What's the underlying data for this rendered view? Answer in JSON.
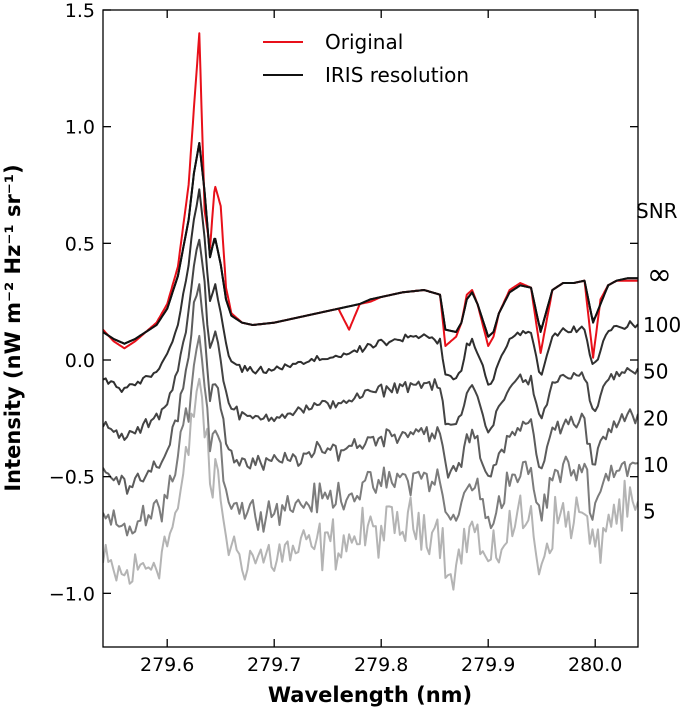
{
  "chart_data": {
    "type": "line",
    "title": "",
    "xlabel": "Wavelength (nm)",
    "ylabel": "Intensity (nW m⁻² Hz⁻¹ sr⁻¹)",
    "xlim": [
      279.54,
      280.04
    ],
    "ylim": [
      -1.23,
      1.5
    ],
    "x_ticks": [
      279.6,
      279.7,
      279.8,
      279.9,
      280.0
    ],
    "x_tick_labels": [
      "279.6",
      "279.7",
      "279.8",
      "279.9",
      "280.0"
    ],
    "y_ticks": [
      1.5,
      1.0,
      0.5,
      0.0,
      -0.5,
      -1.0
    ],
    "y_tick_labels": [
      "1.5",
      "1.0",
      "0.5",
      "0.0",
      "−0.5",
      "−1.0"
    ],
    "grid": false,
    "legend": {
      "placement": "top-center",
      "entries": [
        {
          "label": "Original",
          "color": "#e8101a"
        },
        {
          "label": "IRIS resolution",
          "color": "#111111"
        }
      ]
    },
    "snr_header": "SNR",
    "baseline": {
      "x": [
        279.54,
        279.55,
        279.56,
        279.57,
        279.58,
        279.59,
        279.6,
        279.61,
        279.62,
        279.625,
        279.63,
        279.635,
        279.64,
        279.6445,
        279.65,
        279.655,
        279.66,
        279.67,
        279.68,
        279.7,
        279.72,
        279.74,
        279.76,
        279.77,
        279.78,
        279.79,
        279.8,
        279.82,
        279.84,
        279.855,
        279.86,
        279.87,
        279.875,
        279.88,
        279.885,
        279.89,
        279.9,
        279.905,
        279.91,
        279.92,
        279.93,
        279.94,
        279.949,
        279.96,
        279.97,
        279.98,
        279.99,
        279.998,
        280.005,
        280.012,
        280.02,
        280.03,
        280.04
      ],
      "iris": [
        0.12,
        0.09,
        0.07,
        0.09,
        0.12,
        0.15,
        0.22,
        0.36,
        0.6,
        0.8,
        0.93,
        0.72,
        0.44,
        0.53,
        0.41,
        0.26,
        0.19,
        0.16,
        0.15,
        0.16,
        0.18,
        0.2,
        0.22,
        0.23,
        0.24,
        0.26,
        0.27,
        0.29,
        0.3,
        0.28,
        0.13,
        0.12,
        0.16,
        0.26,
        0.29,
        0.24,
        0.1,
        0.12,
        0.2,
        0.29,
        0.32,
        0.31,
        0.12,
        0.3,
        0.33,
        0.33,
        0.34,
        0.16,
        0.24,
        0.32,
        0.34,
        0.35,
        0.35
      ],
      "original": [
        0.13,
        0.08,
        0.05,
        0.08,
        0.12,
        0.16,
        0.24,
        0.4,
        0.75,
        1.08,
        1.4,
        0.64,
        0.48,
        0.75,
        0.66,
        0.31,
        0.2,
        0.16,
        0.15,
        0.16,
        0.18,
        0.2,
        0.22,
        0.13,
        0.24,
        0.25,
        0.27,
        0.29,
        0.3,
        0.28,
        0.06,
        0.1,
        0.16,
        0.28,
        0.3,
        0.24,
        0.06,
        0.1,
        0.2,
        0.3,
        0.33,
        0.31,
        0.03,
        0.3,
        0.33,
        0.33,
        0.34,
        0.01,
        0.26,
        0.32,
        0.34,
        0.34,
        0.34
      ]
    },
    "series": [
      {
        "name": "∞",
        "offset": 0.0,
        "noise": 0.0,
        "color": "#111111",
        "label": "∞"
      },
      {
        "name": "100",
        "offset": -0.2,
        "noise": 0.01,
        "color": "#2f2f2f",
        "label": "100"
      },
      {
        "name": "50",
        "offset": -0.4,
        "noise": 0.015,
        "color": "#444444",
        "label": "50"
      },
      {
        "name": "20",
        "offset": -0.6,
        "noise": 0.025,
        "color": "#5c5c5c",
        "label": "20"
      },
      {
        "name": "10",
        "offset": -0.8,
        "noise": 0.04,
        "color": "#7c7c7c",
        "label": "10"
      },
      {
        "name": "5",
        "offset": -1.0,
        "noise": 0.07,
        "color": "#b4b4b4",
        "label": "5"
      }
    ],
    "original_series": {
      "name": "Original",
      "color": "#e8101a"
    }
  }
}
